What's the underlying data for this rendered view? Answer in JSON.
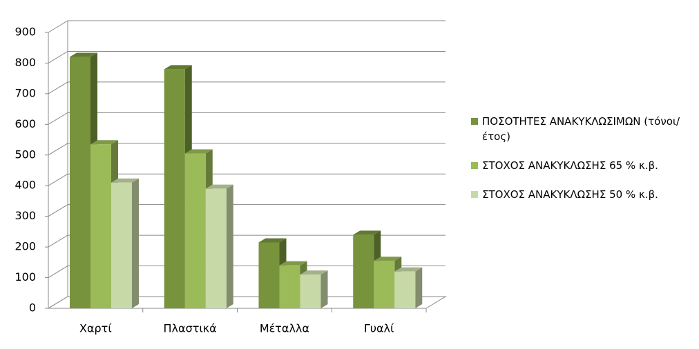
{
  "chart_data": {
    "type": "bar3d",
    "categories": [
      "Χαρτί",
      "Πλαστικά",
      "Μέταλλα",
      "Γυαλί"
    ],
    "series": [
      {
        "name": "ΠΟΣΟΤΗΤΕΣ ΑΝΑΚΥΚΛΩΣΙΜΩΝ (τόνοι/έτος)",
        "color": "#77933c",
        "values": [
          820,
          780,
          215,
          240
        ]
      },
      {
        "name": "ΣΤΟΧΟΣ ΑΝΑΚΥΚΛΩΣΗΣ  65 % κ.β.",
        "color": "#9bbb59",
        "values": [
          535,
          505,
          140,
          155
        ]
      },
      {
        "name": "ΣΤΟΧΟΣ ΑΝΑΚΥΚΛΩΣΗΣ  50 % κ.β.",
        "color": "#c8d9a8",
        "values": [
          410,
          390,
          110,
          120
        ]
      }
    ],
    "ylim": [
      0,
      900
    ],
    "yticks": [
      0,
      100,
      200,
      300,
      400,
      500,
      600,
      700,
      800,
      900
    ],
    "grid": true,
    "legend": "right"
  }
}
